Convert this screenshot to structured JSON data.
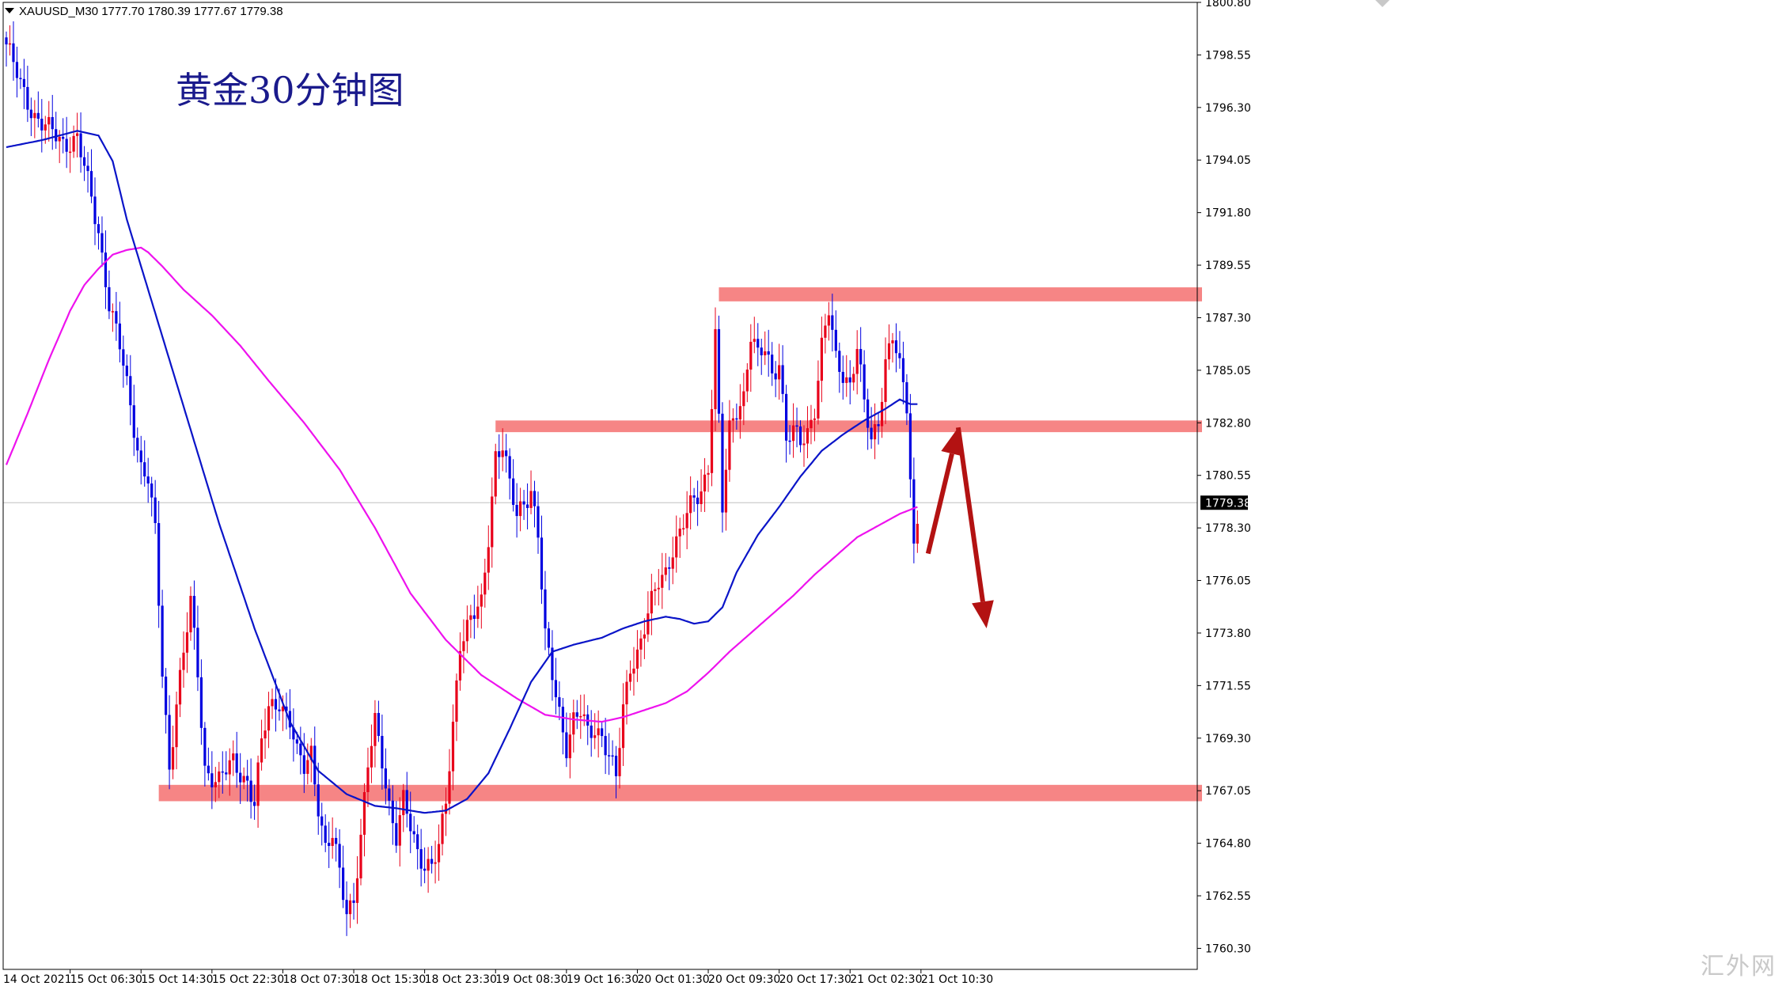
{
  "window": {
    "header_text": "XAUUSD_M30  1777.70 1780.39 1777.67 1779.38",
    "watermark": "汇外网"
  },
  "colors": {
    "bull_candle": "#e8001a",
    "bear_candle": "#0000e0",
    "ma_fast": "#0a14c8",
    "ma_slow": "#ee12ee",
    "zone": "#f57878",
    "arrow": "#b31212",
    "last_price_bg": "#000000"
  },
  "chart_data": {
    "type": "candlestick",
    "title": "黄金30分钟图",
    "symbol": "XAUUSD",
    "timeframe": "M30",
    "ohlc_header": {
      "open": 1777.7,
      "high": 1780.39,
      "low": 1777.67,
      "close": 1779.38
    },
    "ylim": [
      1759.4,
      1800.8
    ],
    "y_ticks": [
      "1800.80",
      "1798.55",
      "1796.30",
      "1794.05",
      "1791.80",
      "1789.55",
      "1787.30",
      "1785.05",
      "1782.80",
      "1780.55",
      "1778.30",
      "1776.05",
      "1773.80",
      "1771.55",
      "1769.30",
      "1767.05",
      "1764.80",
      "1762.55",
      "1760.30"
    ],
    "x_tick_labels": [
      "14 Oct 2021",
      "15 Oct 06:30",
      "15 Oct 14:30",
      "15 Oct 22:30",
      "18 Oct 07:30",
      "18 Oct 15:30",
      "18 Oct 23:30",
      "19 Oct 08:30",
      "19 Oct 16:30",
      "20 Oct 01:30",
      "20 Oct 09:30",
      "20 Oct 17:30",
      "21 Oct 02:30",
      "21 Oct 10:30"
    ],
    "last_price": "1779.38",
    "grid": false,
    "price_anchors": [
      [
        0,
        1799.0
      ],
      [
        4,
        1797.2
      ],
      [
        8,
        1796.0
      ],
      [
        12,
        1795.3
      ],
      [
        16,
        1794.8
      ],
      [
        20,
        1795.0
      ],
      [
        23,
        1793.0
      ],
      [
        26,
        1791.0
      ],
      [
        29,
        1788.0
      ],
      [
        32,
        1786.0
      ],
      [
        35,
        1783.5
      ],
      [
        38,
        1781.0
      ],
      [
        40,
        1780.5
      ],
      [
        42,
        1778.0
      ],
      [
        44,
        1772.0
      ],
      [
        46,
        1768.0
      ],
      [
        48,
        1771.0
      ],
      [
        50,
        1773.0
      ],
      [
        52,
        1775.0
      ],
      [
        54,
        1772.0
      ],
      [
        56,
        1768.0
      ],
      [
        60,
        1767.5
      ],
      [
        64,
        1768.2
      ],
      [
        68,
        1767.5
      ],
      [
        70,
        1766.5
      ],
      [
        72,
        1769.0
      ],
      [
        74,
        1770.5
      ],
      [
        77,
        1771.0
      ],
      [
        80,
        1770.0
      ],
      [
        82,
        1768.5
      ],
      [
        84,
        1768.0
      ],
      [
        86,
        1768.8
      ],
      [
        88,
        1766.5
      ],
      [
        90,
        1764.5
      ],
      [
        92,
        1765.0
      ],
      [
        94,
        1763.5
      ],
      [
        96,
        1762.0
      ],
      [
        98,
        1762.5
      ],
      [
        100,
        1765.0
      ],
      [
        102,
        1768.0
      ],
      [
        104,
        1770.0
      ],
      [
        106,
        1768.5
      ],
      [
        108,
        1766.5
      ],
      [
        110,
        1765.0
      ],
      [
        112,
        1766.5
      ],
      [
        114,
        1765.5
      ],
      [
        116,
        1764.5
      ],
      [
        118,
        1764.0
      ],
      [
        120,
        1763.8
      ],
      [
        122,
        1764.5
      ],
      [
        124,
        1766.5
      ],
      [
        126,
        1770.0
      ],
      [
        128,
        1773.5
      ],
      [
        130,
        1774.0
      ],
      [
        132,
        1774.5
      ],
      [
        134,
        1775.0
      ],
      [
        136,
        1778.0
      ],
      [
        138,
        1781.5
      ],
      [
        140,
        1781.8
      ],
      [
        142,
        1780.0
      ],
      [
        144,
        1778.8
      ],
      [
        146,
        1779.5
      ],
      [
        148,
        1780.0
      ],
      [
        150,
        1778.0
      ],
      [
        152,
        1773.5
      ],
      [
        154,
        1772.0
      ],
      [
        156,
        1770.5
      ],
      [
        158,
        1769.0
      ],
      [
        160,
        1770.0
      ],
      [
        162,
        1770.3
      ],
      [
        164,
        1769.5
      ],
      [
        166,
        1769.8
      ],
      [
        168,
        1769.5
      ],
      [
        170,
        1768.5
      ],
      [
        172,
        1767.5
      ],
      [
        174,
        1770.5
      ],
      [
        176,
        1772.5
      ],
      [
        178,
        1773.0
      ],
      [
        180,
        1774.0
      ],
      [
        182,
        1775.0
      ],
      [
        184,
        1776.0
      ],
      [
        186,
        1776.5
      ],
      [
        188,
        1777.5
      ],
      [
        190,
        1778.0
      ],
      [
        192,
        1778.8
      ],
      [
        194,
        1779.5
      ],
      [
        196,
        1780.0
      ],
      [
        198,
        1781.0
      ],
      [
        200,
        1786.5
      ],
      [
        202,
        1779.0
      ],
      [
        204,
        1782.5
      ],
      [
        206,
        1783.5
      ],
      [
        208,
        1784.0
      ],
      [
        210,
        1786.5
      ],
      [
        212,
        1785.5
      ],
      [
        214,
        1786.0
      ],
      [
        216,
        1785.0
      ],
      [
        218,
        1785.5
      ],
      [
        220,
        1782.0
      ],
      [
        222,
        1782.3
      ],
      [
        224,
        1782.0
      ],
      [
        226,
        1782.5
      ],
      [
        228,
        1783.5
      ],
      [
        230,
        1786.0
      ],
      [
        232,
        1787.5
      ],
      [
        234,
        1785.5
      ],
      [
        236,
        1785.0
      ],
      [
        238,
        1784.5
      ],
      [
        240,
        1786.0
      ],
      [
        242,
        1783.5
      ],
      [
        244,
        1782.0
      ],
      [
        246,
        1783.0
      ],
      [
        248,
        1785.5
      ],
      [
        250,
        1786.5
      ],
      [
        252,
        1785.0
      ],
      [
        254,
        1783.5
      ],
      [
        256,
        1777.5
      ],
      [
        257,
        1778.8
      ]
    ],
    "ma_fast_anchors": [
      [
        0,
        1794.6
      ],
      [
        10,
        1794.9
      ],
      [
        20,
        1795.3
      ],
      [
        26,
        1795.1
      ],
      [
        30,
        1794.0
      ],
      [
        34,
        1791.5
      ],
      [
        40,
        1788.5
      ],
      [
        50,
        1783.5
      ],
      [
        60,
        1778.5
      ],
      [
        70,
        1774.0
      ],
      [
        80,
        1770.0
      ],
      [
        88,
        1767.9
      ],
      [
        96,
        1766.9
      ],
      [
        104,
        1766.4
      ],
      [
        110,
        1766.3
      ],
      [
        118,
        1766.1
      ],
      [
        124,
        1766.2
      ],
      [
        130,
        1766.7
      ],
      [
        136,
        1767.8
      ],
      [
        142,
        1769.7
      ],
      [
        148,
        1771.7
      ],
      [
        154,
        1773.0
      ],
      [
        160,
        1773.3
      ],
      [
        168,
        1773.6
      ],
      [
        174,
        1774.0
      ],
      [
        180,
        1774.3
      ],
      [
        186,
        1774.5
      ],
      [
        190,
        1774.4
      ],
      [
        194,
        1774.2
      ],
      [
        198,
        1774.3
      ],
      [
        202,
        1774.9
      ],
      [
        206,
        1776.4
      ],
      [
        212,
        1778.0
      ],
      [
        218,
        1779.2
      ],
      [
        224,
        1780.5
      ],
      [
        230,
        1781.6
      ],
      [
        236,
        1782.3
      ],
      [
        242,
        1782.9
      ],
      [
        248,
        1783.4
      ],
      [
        252,
        1783.8
      ],
      [
        255,
        1783.6
      ],
      [
        257,
        1783.6
      ]
    ],
    "ma_slow_anchors": [
      [
        0,
        1781.0
      ],
      [
        6,
        1783.2
      ],
      [
        12,
        1785.5
      ],
      [
        18,
        1787.6
      ],
      [
        22,
        1788.7
      ],
      [
        26,
        1789.4
      ],
      [
        30,
        1790.0
      ],
      [
        34,
        1790.2
      ],
      [
        38,
        1790.3
      ],
      [
        40,
        1790.1
      ],
      [
        44,
        1789.5
      ],
      [
        50,
        1788.5
      ],
      [
        58,
        1787.4
      ],
      [
        66,
        1786.1
      ],
      [
        74,
        1784.6
      ],
      [
        84,
        1782.8
      ],
      [
        94,
        1780.8
      ],
      [
        104,
        1778.3
      ],
      [
        114,
        1775.5
      ],
      [
        124,
        1773.5
      ],
      [
        134,
        1772.0
      ],
      [
        144,
        1771.0
      ],
      [
        152,
        1770.3
      ],
      [
        160,
        1770.1
      ],
      [
        168,
        1770.0
      ],
      [
        174,
        1770.2
      ],
      [
        180,
        1770.5
      ],
      [
        186,
        1770.8
      ],
      [
        192,
        1771.3
      ],
      [
        198,
        1772.1
      ],
      [
        204,
        1773.0
      ],
      [
        210,
        1773.8
      ],
      [
        216,
        1774.6
      ],
      [
        222,
        1775.4
      ],
      [
        228,
        1776.3
      ],
      [
        234,
        1777.1
      ],
      [
        240,
        1777.9
      ],
      [
        246,
        1778.4
      ],
      [
        252,
        1778.9
      ],
      [
        257,
        1779.2
      ]
    ],
    "zones": [
      {
        "name": "resistance",
        "from": 1788.0,
        "to": 1788.6,
        "start_bar": 201
      },
      {
        "name": "pivot",
        "from": 1782.4,
        "to": 1782.9,
        "start_bar": 138
      },
      {
        "name": "support",
        "from": 1766.6,
        "to": 1767.3,
        "start_bar": 43
      }
    ],
    "arrows": [
      {
        "from_bar": 260.0,
        "from_price": 1777.2,
        "to_bar": 268.5,
        "to_price": 1782.6
      },
      {
        "from_bar": 268.5,
        "from_price": 1782.6,
        "to_bar": 276.5,
        "to_price": 1774.0
      }
    ]
  }
}
